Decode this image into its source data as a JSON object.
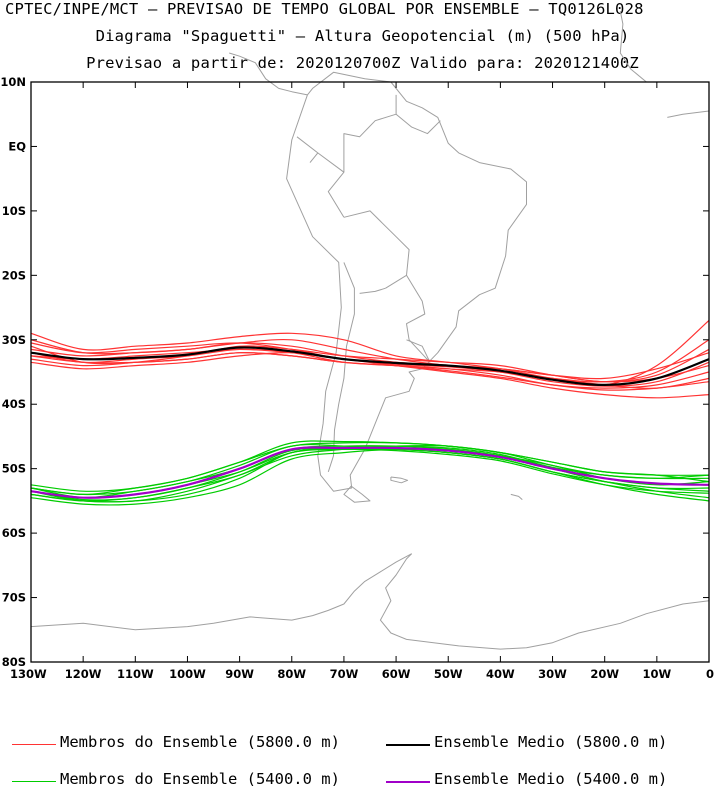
{
  "header": {
    "line1": "CPTEC/INPE/MCT – PREVISAO DE TEMPO GLOBAL POR ENSEMBLE – TQ0126L028",
    "line2": "Diagrama \"Spaguetti\" – Altura Geopotencial (m) (500 hPa)",
    "line3": "Previsao a partir de: 2020120700Z  Valido para: 2020121400Z"
  },
  "axes": {
    "lat_labels": [
      "10N",
      "EQ",
      "10S",
      "20S",
      "30S",
      "40S",
      "50S",
      "60S",
      "70S",
      "80S"
    ],
    "lat_values": [
      10,
      0,
      -10,
      -20,
      -30,
      -40,
      -50,
      -60,
      -70,
      -80
    ],
    "lon_labels": [
      "130W",
      "120W",
      "110W",
      "100W",
      "90W",
      "80W",
      "70W",
      "60W",
      "50W",
      "40W",
      "30W",
      "20W",
      "10W",
      "0"
    ],
    "lon_values": [
      -130,
      -120,
      -110,
      -100,
      -90,
      -80,
      -70,
      -60,
      -50,
      -40,
      -30,
      -20,
      -10,
      0
    ],
    "lon_range": [
      -130,
      0
    ],
    "lat_range": [
      -80,
      10
    ]
  },
  "colors": {
    "member_5800": "#ff3333",
    "mean_5800": "#000000",
    "member_5400": "#00cc00",
    "mean_5400": "#a000c8",
    "coast": "#a0a0a0"
  },
  "legend": {
    "member_5800": "Membros do Ensemble (5800.0 m)",
    "mean_5800": "Ensemble Medio (5800.0 m)",
    "member_5400": "Membros do Ensemble (5400.0 m)",
    "mean_5400": "Ensemble Medio (5400.0 m)"
  },
  "chart_data": {
    "type": "line",
    "x_lon": [
      -130,
      -120,
      -110,
      -100,
      -90,
      -80,
      -70,
      -60,
      -50,
      -40,
      -30,
      -20,
      -10,
      0
    ],
    "series": [
      {
        "name": "Ensemble Medio (5800.0 m)",
        "lat": [
          -32.0,
          -33.0,
          -32.8,
          -32.3,
          -31.2,
          -31.8,
          -33.0,
          -33.6,
          -34.0,
          -34.8,
          -36.2,
          -37.0,
          -36.0,
          -33.0
        ]
      },
      {
        "name": "Ensemble Medio (5400.0 m)",
        "lat": [
          -53.5,
          -54.5,
          -54.0,
          -52.5,
          -50.0,
          -47.0,
          -46.8,
          -46.8,
          -47.2,
          -48.2,
          -50.0,
          -51.5,
          -52.3,
          -52.5
        ]
      }
    ],
    "members_5800": [
      [
        -30.0,
        -32.0,
        -32.0,
        -31.5,
        -30.5,
        -31.0,
        -32.5,
        -33.5,
        -34.0,
        -34.5,
        -35.5,
        -36.0,
        -34.5,
        -32.0
      ],
      [
        -29.0,
        -31.5,
        -31.0,
        -30.5,
        -29.5,
        -29.0,
        -30.0,
        -32.5,
        -33.5,
        -34.5,
        -36.0,
        -37.0,
        -34.0,
        -27.0
      ],
      [
        -31.0,
        -33.5,
        -33.5,
        -33.0,
        -32.0,
        -32.5,
        -33.5,
        -34.0,
        -34.5,
        -35.5,
        -37.0,
        -37.5,
        -37.0,
        -35.0
      ],
      [
        -33.0,
        -34.0,
        -33.5,
        -32.5,
        -31.0,
        -31.5,
        -32.5,
        -33.0,
        -33.5,
        -34.0,
        -35.5,
        -36.5,
        -36.0,
        -34.0
      ],
      [
        -32.5,
        -33.0,
        -32.5,
        -32.0,
        -31.5,
        -32.0,
        -33.0,
        -33.8,
        -34.2,
        -35.0,
        -36.5,
        -37.2,
        -36.5,
        -33.5
      ],
      [
        -31.5,
        -32.5,
        -32.0,
        -31.5,
        -30.5,
        -30.0,
        -31.5,
        -33.0,
        -34.0,
        -35.0,
        -36.0,
        -36.5,
        -35.0,
        -30.0
      ],
      [
        -33.5,
        -34.5,
        -34.0,
        -33.5,
        -32.5,
        -32.0,
        -33.0,
        -34.0,
        -35.0,
        -36.0,
        -37.5,
        -38.5,
        -39.0,
        -38.5
      ],
      [
        -32.0,
        -33.5,
        -33.0,
        -32.5,
        -31.5,
        -32.0,
        -33.5,
        -34.0,
        -34.5,
        -35.0,
        -36.0,
        -37.0,
        -37.5,
        -36.0
      ],
      [
        -30.5,
        -32.0,
        -31.5,
        -31.0,
        -30.5,
        -31.5,
        -33.0,
        -33.5,
        -34.0,
        -34.5,
        -35.5,
        -36.5,
        -35.5,
        -31.5
      ],
      [
        -32.5,
        -33.5,
        -33.5,
        -33.0,
        -32.0,
        -32.5,
        -33.5,
        -34.0,
        -34.8,
        -35.8,
        -37.0,
        -37.8,
        -37.5,
        -36.5
      ]
    ],
    "members_5400": [
      [
        -53.0,
        -54.0,
        -53.0,
        -51.5,
        -49.0,
        -46.5,
        -46.0,
        -46.0,
        -46.5,
        -47.5,
        -49.5,
        -51.0,
        -51.5,
        -51.0
      ],
      [
        -53.5,
        -55.0,
        -55.0,
        -54.0,
        -51.5,
        -47.5,
        -47.0,
        -47.0,
        -47.5,
        -48.5,
        -50.5,
        -52.5,
        -54.0,
        -55.0
      ],
      [
        -53.0,
        -54.5,
        -54.0,
        -52.5,
        -50.5,
        -47.5,
        -47.0,
        -47.0,
        -47.5,
        -48.5,
        -50.5,
        -52.0,
        -53.0,
        -53.5
      ],
      [
        -54.0,
        -55.0,
        -55.0,
        -53.5,
        -51.0,
        -48.0,
        -47.0,
        -46.5,
        -46.5,
        -47.5,
        -49.0,
        -50.5,
        -51.0,
        -51.0
      ],
      [
        -53.5,
        -54.5,
        -53.5,
        -52.0,
        -49.5,
        -46.5,
        -46.5,
        -47.0,
        -47.5,
        -48.5,
        -50.5,
        -52.0,
        -53.0,
        -53.0
      ],
      [
        -54.5,
        -55.5,
        -55.5,
        -54.5,
        -52.5,
        -48.5,
        -47.5,
        -47.0,
        -47.0,
        -48.0,
        -49.5,
        -51.5,
        -52.5,
        -52.0
      ],
      [
        -52.5,
        -53.5,
        -53.0,
        -51.5,
        -49.0,
        -46.0,
        -45.8,
        -46.0,
        -46.5,
        -47.5,
        -49.0,
        -50.5,
        -51.0,
        -52.0
      ],
      [
        -53.0,
        -54.0,
        -53.5,
        -52.0,
        -50.0,
        -47.0,
        -46.5,
        -46.5,
        -47.0,
        -48.0,
        -50.0,
        -52.0,
        -53.5,
        -54.5
      ],
      [
        -54.0,
        -55.0,
        -54.5,
        -53.0,
        -51.0,
        -47.5,
        -46.8,
        -46.5,
        -46.8,
        -47.8,
        -49.8,
        -51.0,
        -51.5,
        -51.5
      ],
      [
        -53.5,
        -54.8,
        -54.5,
        -53.0,
        -50.5,
        -47.2,
        -47.0,
        -47.2,
        -47.8,
        -48.8,
        -50.8,
        -52.5,
        -53.5,
        -53.8
      ]
    ]
  }
}
